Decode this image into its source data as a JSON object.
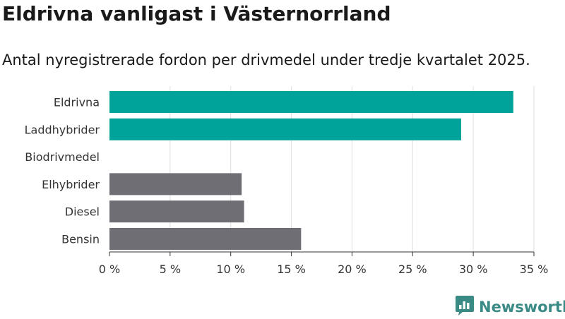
{
  "title": "Eldrivna vanligast i Västernorrland",
  "subtitle": "Antal nyregistrerade fordon per drivmedel under tredje kvartalet 2025.",
  "brand": {
    "name": "Newsworthy",
    "icon": "newsworthy-logo-icon",
    "color": "#3a8a86"
  },
  "chart_data": {
    "type": "bar",
    "orientation": "horizontal",
    "title": "Eldrivna vanligast i Västernorrland",
    "subtitle": "Antal nyregistrerade fordon per drivmedel under tredje kvartalet 2025.",
    "xlabel": "",
    "ylabel": "",
    "unit": "%",
    "categories": [
      "Eldrivna",
      "Laddhybrider",
      "Biodrivmedel",
      "Elhybrider",
      "Diesel",
      "Bensin"
    ],
    "values": [
      33.3,
      29.0,
      0,
      10.9,
      11.1,
      15.8
    ],
    "colors": [
      "#00a39a",
      "#00a39a",
      "#00a39a",
      "#6e6e74",
      "#6e6e74",
      "#6e6e74"
    ],
    "xlim": [
      0,
      35
    ],
    "ticks": [
      0,
      5,
      10,
      15,
      20,
      25,
      30,
      35
    ],
    "tick_labels": [
      "0 %",
      "5 %",
      "10 %",
      "15 %",
      "20 %",
      "25 %",
      "30 %",
      "35 %"
    ],
    "grid": true
  }
}
